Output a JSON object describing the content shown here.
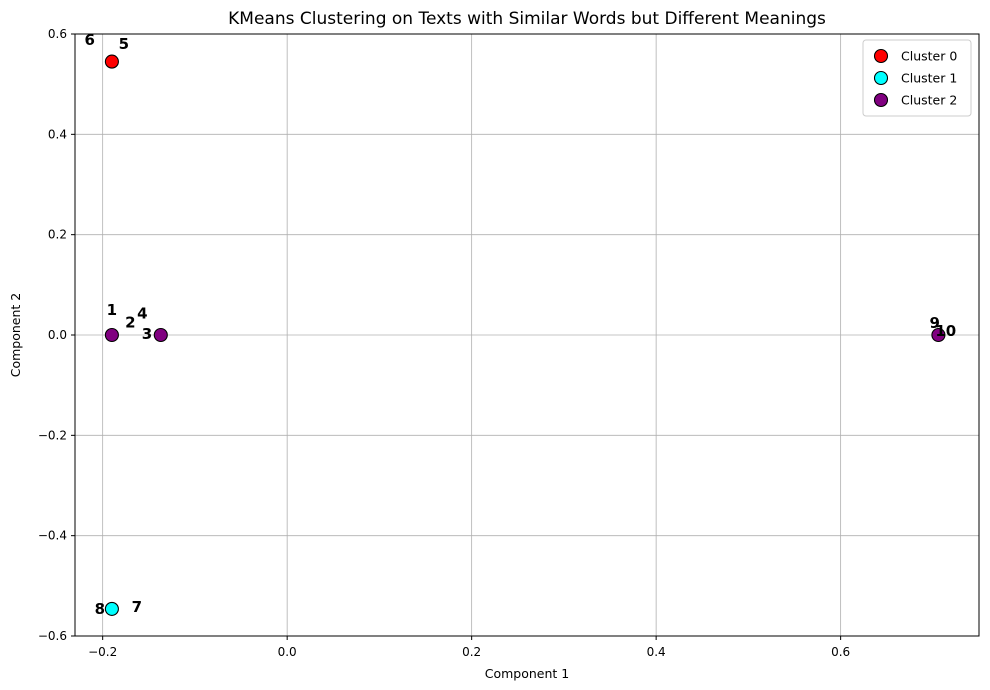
{
  "chart_data": {
    "type": "scatter",
    "title": "KMeans Clustering on Texts with Similar Words but Different Meanings",
    "xlabel": "Component 1",
    "ylabel": "Component 2",
    "xlim": [
      -0.23,
      0.75
    ],
    "ylim": [
      -0.6,
      0.6
    ],
    "xticks": [
      -0.2,
      0.0,
      0.2,
      0.4,
      0.6
    ],
    "xtick_labels": [
      "−0.2",
      "0.0",
      "0.2",
      "0.4",
      "0.6"
    ],
    "yticks": [
      -0.6,
      -0.4,
      -0.2,
      0.0,
      0.2,
      0.4,
      0.6
    ],
    "ytick_labels": [
      "−0.6",
      "−0.4",
      "−0.2",
      "0.0",
      "0.2",
      "0.4",
      "0.6"
    ],
    "grid": true,
    "legend_position": "top-right",
    "series": [
      {
        "name": "Cluster 0",
        "color": "#ff0000",
        "points": [
          {
            "x": -0.19,
            "y": 0.545
          }
        ]
      },
      {
        "name": "Cluster 1",
        "color": "#00ffff",
        "points": [
          {
            "x": -0.19,
            "y": -0.546
          }
        ]
      },
      {
        "name": "Cluster 2",
        "color": "#800080",
        "points": [
          {
            "x": -0.19,
            "y": 0.0
          },
          {
            "x": -0.137,
            "y": 0.0
          },
          {
            "x": 0.706,
            "y": 0.0
          }
        ]
      }
    ],
    "annotations": [
      {
        "text": "1",
        "x": -0.19,
        "y": 0.04
      },
      {
        "text": "2",
        "x": -0.17,
        "y": 0.015
      },
      {
        "text": "3",
        "x": -0.152,
        "y": -0.008
      },
      {
        "text": "4",
        "x": -0.157,
        "y": 0.033
      },
      {
        "text": "5",
        "x": -0.177,
        "y": 0.57
      },
      {
        "text": "6",
        "x": -0.214,
        "y": 0.578
      },
      {
        "text": "7",
        "x": -0.163,
        "y": -0.552
      },
      {
        "text": "8",
        "x": -0.203,
        "y": -0.556
      },
      {
        "text": "9",
        "x": 0.702,
        "y": 0.014
      },
      {
        "text": "10",
        "x": 0.714,
        "y": -0.002
      }
    ]
  }
}
